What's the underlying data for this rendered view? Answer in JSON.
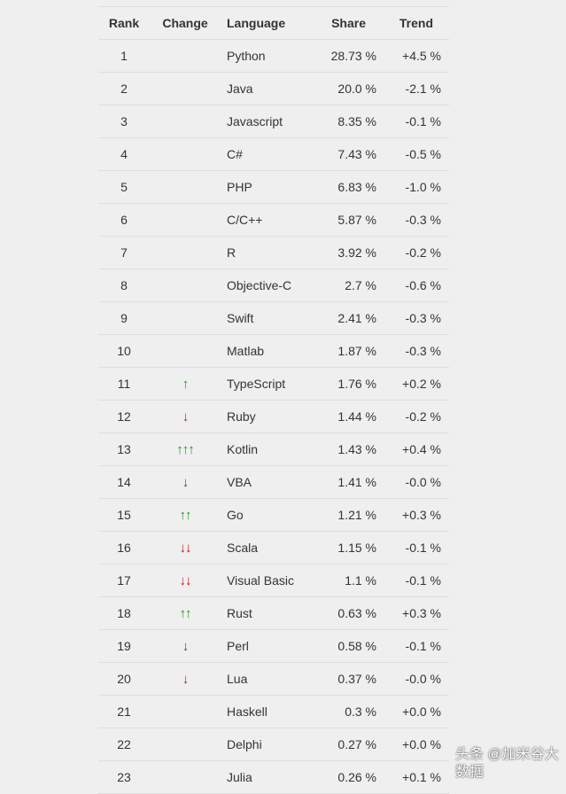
{
  "headers": {
    "rank": "Rank",
    "change": "Change",
    "language": "Language",
    "share": "Share",
    "trend": "Trend"
  },
  "colors": {
    "up": "#1a9a1a",
    "down": "#c81414"
  },
  "rows": [
    {
      "rank": "1",
      "change": "",
      "language": "Python",
      "share": "28.73 %",
      "trend": "+4.5 %"
    },
    {
      "rank": "2",
      "change": "",
      "language": "Java",
      "share": "20.0 %",
      "trend": "-2.1 %"
    },
    {
      "rank": "3",
      "change": "",
      "language": "Javascript",
      "share": "8.35 %",
      "trend": "-0.1 %"
    },
    {
      "rank": "4",
      "change": "",
      "language": "C#",
      "share": "7.43 %",
      "trend": "-0.5 %"
    },
    {
      "rank": "5",
      "change": "",
      "language": "PHP",
      "share": "6.83 %",
      "trend": "-1.0 %"
    },
    {
      "rank": "6",
      "change": "",
      "language": "C/C++",
      "share": "5.87 %",
      "trend": "-0.3 %"
    },
    {
      "rank": "7",
      "change": "",
      "language": "R",
      "share": "3.92 %",
      "trend": "-0.2 %"
    },
    {
      "rank": "8",
      "change": "",
      "language": "Objective-C",
      "share": "2.7 %",
      "trend": "-0.6 %"
    },
    {
      "rank": "9",
      "change": "",
      "language": "Swift",
      "share": "2.41 %",
      "trend": "-0.3 %"
    },
    {
      "rank": "10",
      "change": "",
      "language": "Matlab",
      "share": "1.87 %",
      "trend": "-0.3 %"
    },
    {
      "rank": "11",
      "change": "up-1",
      "language": "TypeScript",
      "share": "1.76 %",
      "trend": "+0.2 %"
    },
    {
      "rank": "12",
      "change": "down-1",
      "language": "Ruby",
      "share": "1.44 %",
      "trend": "-0.2 %"
    },
    {
      "rank": "13",
      "change": "up-3",
      "language": "Kotlin",
      "share": "1.43 %",
      "trend": "+0.4 %"
    },
    {
      "rank": "14",
      "change": "down-1",
      "language": "VBA",
      "share": "1.41 %",
      "trend": "-0.0 %"
    },
    {
      "rank": "15",
      "change": "up-2",
      "language": "Go",
      "share": "1.21 %",
      "trend": "+0.3 %"
    },
    {
      "rank": "16",
      "change": "down-2",
      "language": "Scala",
      "share": "1.15 %",
      "trend": "-0.1 %"
    },
    {
      "rank": "17",
      "change": "down-2",
      "language": "Visual Basic",
      "share": "1.1 %",
      "trend": "-0.1 %"
    },
    {
      "rank": "18",
      "change": "up-2",
      "language": "Rust",
      "share": "0.63 %",
      "trend": "+0.3 %"
    },
    {
      "rank": "19",
      "change": "down-1",
      "language": "Perl",
      "share": "0.58 %",
      "trend": "-0.1 %"
    },
    {
      "rank": "20",
      "change": "down-1",
      "language": "Lua",
      "share": "0.37 %",
      "trend": "-0.0 %"
    },
    {
      "rank": "21",
      "change": "",
      "language": "Haskell",
      "share": "0.3 %",
      "trend": "+0.0 %"
    },
    {
      "rank": "22",
      "change": "",
      "language": "Delphi",
      "share": "0.27 %",
      "trend": "+0.0 %"
    },
    {
      "rank": "23",
      "change": "",
      "language": "Julia",
      "share": "0.26 %",
      "trend": "+0.1 %"
    }
  ],
  "watermark": "头条 @加米谷大数据"
}
